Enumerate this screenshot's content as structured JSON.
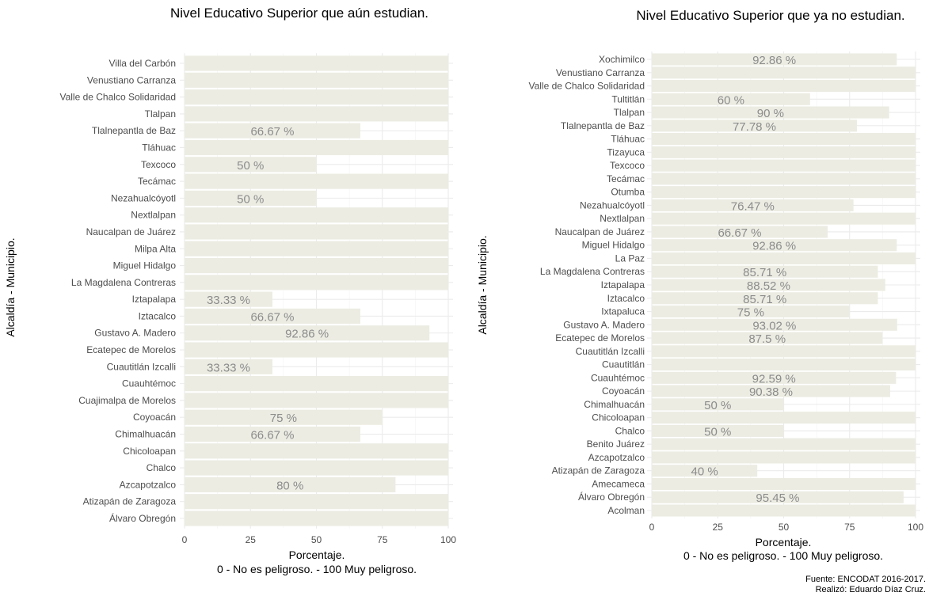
{
  "caption": {
    "line1": "Fuente: ENCODAT 2016-2017.",
    "line2": "Realizó: Eduardo Díaz Cruz."
  },
  "chart_data": [
    {
      "type": "bar",
      "orientation": "horizontal",
      "title": "Nivel Educativo Superior que aún estudian.",
      "xlabel": "Porcentaje.",
      "xlabel2": "0 - No es peligroso. - 100 Muy peligroso.",
      "ylabel": "Alcaldía - Municipio.",
      "xlim": [
        0,
        100
      ],
      "xticks": [
        "0",
        "25",
        "50",
        "75",
        "100"
      ],
      "grid": true,
      "categories": [
        "Villa del Carbón",
        "Venustiano Carranza",
        "Valle de Chalco Solidaridad",
        "Tlalpan",
        "Tlalnepantla de Baz",
        "Tláhuac",
        "Texcoco",
        "Tecámac",
        "Nezahualcóyotl",
        "Nextlalpan",
        "Naucalpan de Juárez",
        "Milpa Alta",
        "Miguel Hidalgo",
        "La Magdalena Contreras",
        "Iztapalapa",
        "Iztacalco",
        "Gustavo A. Madero",
        "Ecatepec de Morelos",
        "Cuautitlán Izcalli",
        "Cuauhtémoc",
        "Cuajimalpa de Morelos",
        "Coyoacán",
        "Chimalhuacán",
        "Chicoloapan",
        "Chalco",
        "Azcapotzalco",
        "Atizapán de Zaragoza",
        "Álvaro Obregón"
      ],
      "values": [
        100,
        100,
        100,
        100,
        66.67,
        100,
        50,
        100,
        50,
        100,
        100,
        100,
        100,
        100,
        33.33,
        66.67,
        92.86,
        100,
        33.33,
        100,
        100,
        75,
        66.67,
        100,
        100,
        80,
        100,
        100
      ],
      "labels": [
        "",
        "",
        "",
        "",
        "66.67 %",
        "",
        "50 %",
        "",
        "50 %",
        "",
        "",
        "",
        "",
        "",
        "33.33 %",
        "66.67 %",
        "92.86 %",
        "",
        "33.33 %",
        "",
        "",
        "75 %",
        "66.67 %",
        "",
        "",
        "80 %",
        "",
        ""
      ]
    },
    {
      "type": "bar",
      "orientation": "horizontal",
      "title": "Nivel Educativo Superior que ya no estudian.",
      "xlabel": "Porcentaje.",
      "xlabel2": "0 - No es peligroso. - 100 Muy peligroso.",
      "ylabel": "Alcaldía - Municipio.",
      "xlim": [
        0,
        100
      ],
      "xticks": [
        "0",
        "25",
        "50",
        "75",
        "100"
      ],
      "grid": true,
      "categories": [
        "Xochimilco",
        "Venustiano Carranza",
        "Valle de Chalco Solidaridad",
        "Tultitlán",
        "Tlalpan",
        "Tlalnepantla de Baz",
        "Tláhuac",
        "Tizayuca",
        "Texcoco",
        "Tecámac",
        "Otumba",
        "Nezahualcóyotl",
        "Nextlalpan",
        "Naucalpan de Juárez",
        "Miguel Hidalgo",
        "La Paz",
        "La Magdalena Contreras",
        "Iztapalapa",
        "Iztacalco",
        "Ixtapaluca",
        "Gustavo A. Madero",
        "Ecatepec de Morelos",
        "Cuautitlán Izcalli",
        "Cuautitlán",
        "Cuauhtémoc",
        "Coyoacán",
        "Chimalhuacán",
        "Chicoloapan",
        "Chalco",
        "Benito Juárez",
        "Azcapotzalco",
        "Atizapán de Zaragoza",
        "Amecameca",
        "Álvaro Obregón",
        "Acolman"
      ],
      "values": [
        92.86,
        100,
        100,
        60,
        90,
        77.78,
        100,
        100,
        100,
        100,
        100,
        76.47,
        100,
        66.67,
        92.86,
        100,
        85.71,
        88.52,
        85.71,
        75,
        93.02,
        87.5,
        100,
        100,
        92.59,
        90.38,
        50,
        100,
        50,
        100,
        100,
        40,
        100,
        95.45,
        100
      ],
      "labels": [
        "92.86 %",
        "",
        "",
        "60 %",
        "90 %",
        "77.78 %",
        "",
        "",
        "",
        "",
        "",
        "76.47 %",
        "",
        "66.67 %",
        "92.86 %",
        "",
        "85.71 %",
        "88.52 %",
        "85.71 %",
        "75 %",
        "93.02 %",
        "87.5 %",
        "",
        "",
        "92.59 %",
        "90.38 %",
        "50 %",
        "",
        "50 %",
        "",
        "",
        "40 %",
        "",
        "95.45 %",
        ""
      ]
    }
  ]
}
